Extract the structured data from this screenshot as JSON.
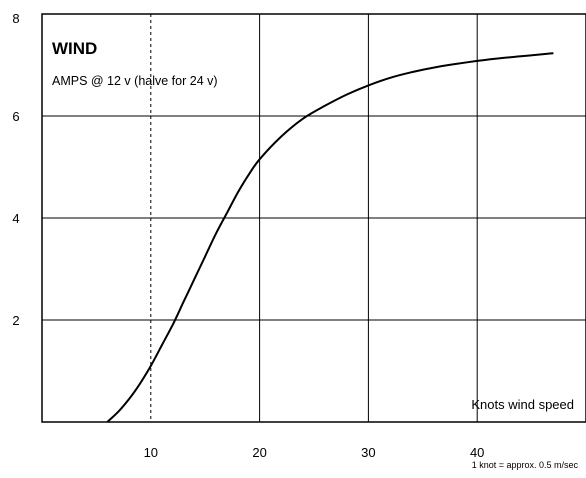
{
  "chart_data": {
    "type": "line",
    "title": "WIND",
    "subtitle": "AMPS @ 12 v (halve for 24 v)",
    "xlabel": "Knots wind speed",
    "ylabel": "",
    "note": "1 knot = approx. 0.5 m/sec",
    "xlim": [
      0,
      50
    ],
    "ylim": [
      0,
      8
    ],
    "xticks": [
      10,
      20,
      30,
      40
    ],
    "yticks": [
      2,
      4,
      6,
      8
    ],
    "grid": true,
    "series": [
      {
        "x": [
          6,
          7,
          8,
          9,
          10,
          11,
          12,
          13,
          14,
          15,
          16,
          17,
          18,
          19,
          20,
          22,
          24,
          26,
          28,
          30,
          32,
          34,
          36,
          38,
          40,
          42,
          44,
          46,
          47
        ],
        "y": [
          0,
          0.2,
          0.45,
          0.75,
          1.1,
          1.5,
          1.9,
          2.35,
          2.8,
          3.25,
          3.7,
          4.1,
          4.5,
          4.85,
          5.15,
          5.6,
          5.95,
          6.2,
          6.42,
          6.6,
          6.75,
          6.86,
          6.95,
          7.02,
          7.08,
          7.13,
          7.17,
          7.21,
          7.23
        ]
      }
    ]
  }
}
